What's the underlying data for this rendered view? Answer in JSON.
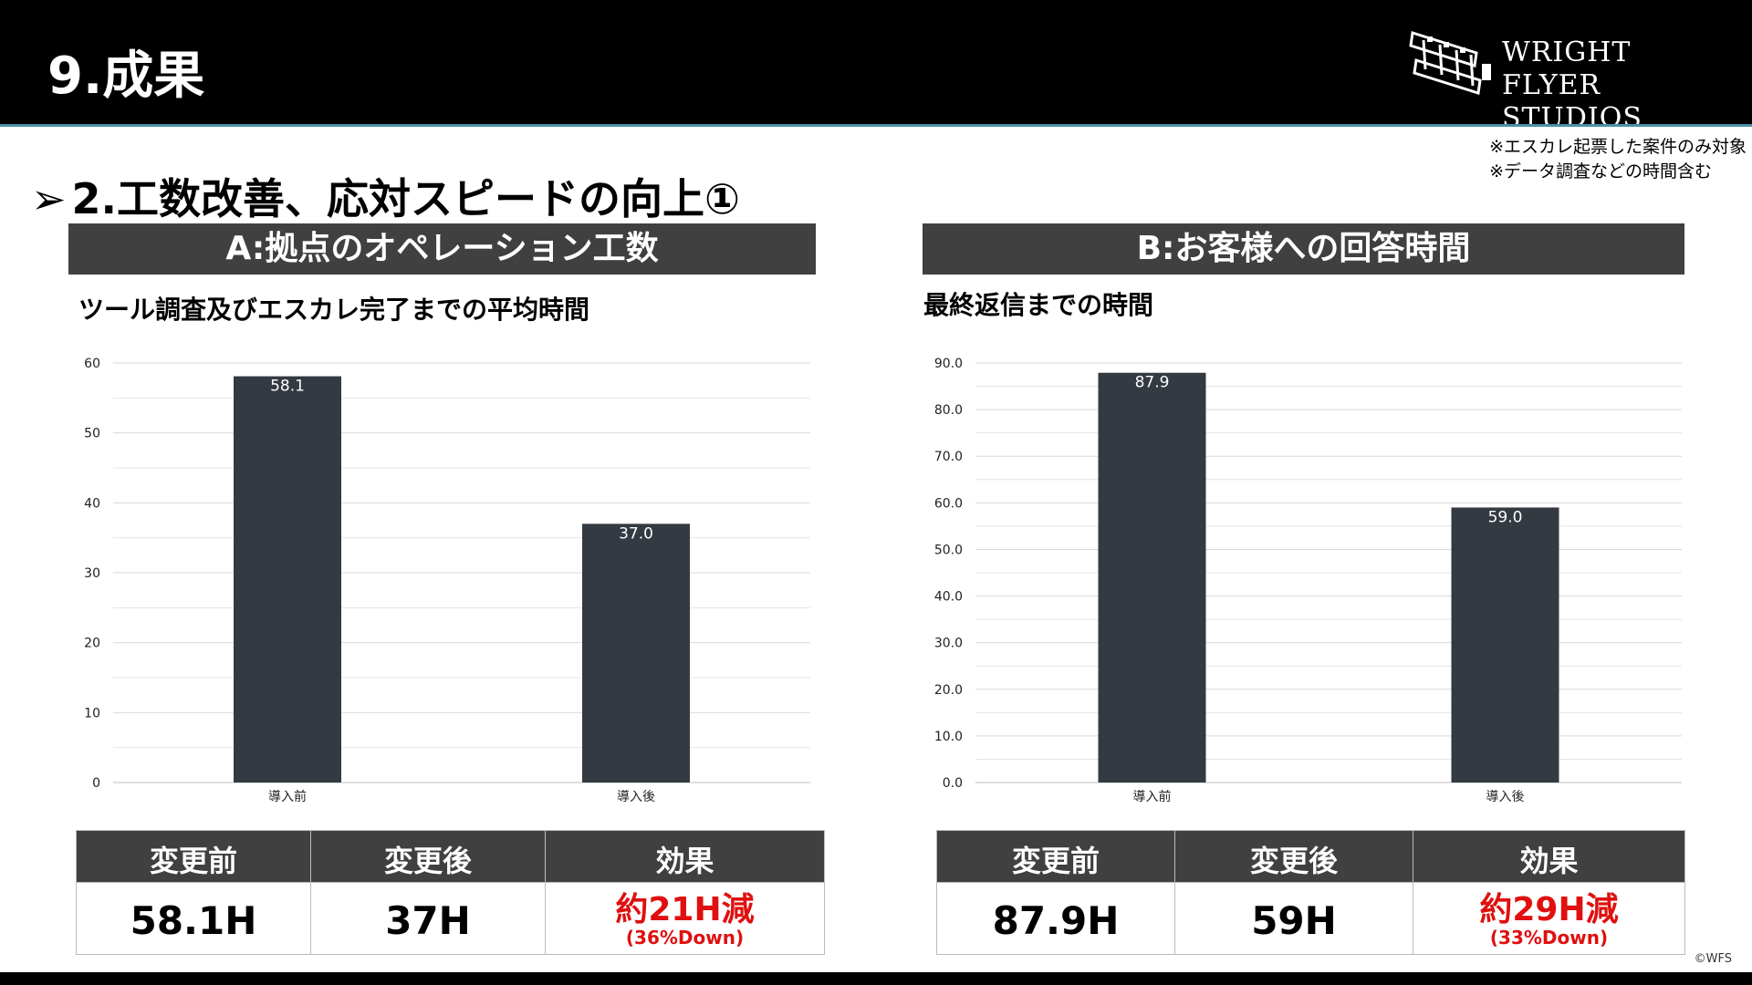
{
  "header": {
    "title": "9.成果",
    "logo_line1": "WRIGHT FLYER",
    "logo_line2": "STUDIOS"
  },
  "notes": [
    "※エスカレ起票した案件のみ対象",
    "※データ調査などの時間含む"
  ],
  "section_title": "2.工数改善、応対スピードの向上①",
  "section_arrow": "➢",
  "panel_a": {
    "head": "A:拠点のオペレーション工数",
    "subtitle": "ツール調査及びエスカレ完了までの平均時間",
    "table": {
      "headers": [
        "変更前",
        "変更後",
        "効果"
      ],
      "before": "58.1H",
      "after": "37H",
      "effect_main": "約21H減",
      "effect_sub": "(36%Down)"
    }
  },
  "panel_b": {
    "head": "B:お客様への回答時間",
    "subtitle": "最終返信までの時間",
    "table": {
      "headers": [
        "変更前",
        "変更後",
        "効果"
      ],
      "before": "87.9H",
      "after": "59H",
      "effect_main": "約29H減",
      "effect_sub": "(33%Down)"
    }
  },
  "chart_data": [
    {
      "type": "bar",
      "categories": [
        "導入前",
        "導入後"
      ],
      "values": [
        58.1,
        37.0
      ],
      "value_labels": [
        "58.1",
        "37.0"
      ],
      "ylim": [
        0,
        60
      ],
      "yticks": [
        0,
        10,
        20,
        30,
        40,
        50,
        60
      ],
      "ytick_labels": [
        "0",
        "10",
        "20",
        "30",
        "40",
        "50",
        "60"
      ],
      "minor_gridlines": true,
      "bar_color": "#343a42"
    },
    {
      "type": "bar",
      "categories": [
        "導入前",
        "導入後"
      ],
      "values": [
        87.9,
        59.0
      ],
      "value_labels": [
        "87.9",
        "59.0"
      ],
      "ylim": [
        0,
        90
      ],
      "yticks": [
        0,
        10,
        20,
        30,
        40,
        50,
        60,
        70,
        80,
        90
      ],
      "ytick_labels": [
        "0.0",
        "10.0",
        "20.0",
        "30.0",
        "40.0",
        "50.0",
        "60.0",
        "70.0",
        "80.0",
        "90.0"
      ],
      "minor_gridlines": true,
      "bar_color": "#343a42"
    }
  ],
  "copyright": "©WFS"
}
